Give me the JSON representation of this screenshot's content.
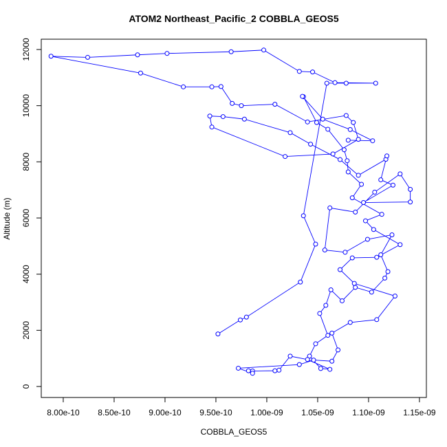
{
  "chart_data": {
    "type": "line",
    "title": "ATOM2 Northeast_Pacific_2 COBBLA_GEOS5",
    "x_label": "COBBLA_GEOS5",
    "y_label": "Altitude (m)",
    "xlim": [
      7.784e-10,
      1.1568e-09
    ],
    "ylim": [
      -392,
      12367
    ],
    "xticks": [
      {
        "value": 8e-10,
        "label": "8.00e-10"
      },
      {
        "value": 8.5e-10,
        "label": "8.50e-10"
      },
      {
        "value": 9e-10,
        "label": "9.00e-10"
      },
      {
        "value": 9.5e-10,
        "label": "9.50e-10"
      },
      {
        "value": 1e-09,
        "label": "1.00e-09"
      },
      {
        "value": 1.05e-09,
        "label": "1.05e-09"
      },
      {
        "value": 1.1e-09,
        "label": "1.10e-09"
      },
      {
        "value": 1.15e-09,
        "label": "1.15e-09"
      }
    ],
    "yticks": [
      0,
      2000,
      4000,
      6000,
      8000,
      10000,
      12000
    ],
    "x": [
      9.52e-10,
      9.74e-10,
      9.8e-10,
      1.033e-09,
      1.048e-09,
      1.036e-09,
      1.059e-09,
      1.078e-09,
      1.107e-09,
      1.067e-09,
      1.045e-09,
      1.032e-09,
      9.97e-10,
      9.65e-10,
      9.02e-10,
      8.73e-10,
      8.24e-10,
      7.88e-10,
      8.76e-10,
      9.18e-10,
      9.46e-10,
      9.55e-10,
      9.66e-10,
      9.75e-10,
      1.008e-09,
      1.04e-09,
      1.078e-09,
      1.085e-09,
      1.09e-09,
      1.065e-09,
      1.018e-09,
      9.46e-10,
      9.44e-10,
      9.57e-10,
      9.78e-10,
      1.023e-09,
      1.043e-09,
      1.072e-09,
      1.09e-09,
      1.117e-09,
      1.118e-09,
      1.112e-09,
      1.124e-09,
      1.095e-09,
      1.141e-09,
      1.141e-09,
      1.131e-09,
      1.106e-09,
      1.087e-09,
      1.062e-09,
      1.057e-09,
      1.077e-09,
      1.099e-09,
      1.123e-09,
      1.112e-09,
      1.119e-09,
      1.116e-09,
      1.103e-09,
      1.087e-09,
      1.074e-09,
      1.063e-09,
      1.058e-09,
      1.052e-09,
      1.06e-09,
      1.048e-09,
      1.042e-09,
      1.053e-09,
      1.062e-09,
      1.04e-09,
      1.023e-09,
      1.012e-09,
      1.008e-09,
      9.86e-10,
      9.82e-10,
      9.86e-10,
      9.72e-10,
      1.032e-09,
      1.046e-09,
      1.064e-09,
      1.07e-09,
      1.064e-09,
      1.082e-09,
      1.108e-09,
      1.126e-09,
      1.086e-09,
      1.072e-09,
      1.084e-09,
      1.108e-09,
      1.131e-09,
      1.105e-09,
      1.097e-09,
      1.113e-09,
      1.084e-09,
      1.093e-09,
      1.08e-09,
      1.079e-09,
      1.076e-09,
      1.06e-09,
      1.049e-09,
      1.036e-09,
      1.035e-09,
      1.055e-09,
      1.082e-09,
      1.104e-09,
      1.08e-09
    ],
    "series": [
      {
        "color": "#0000ff",
        "values": [
          1870,
          2370,
          2470,
          3720,
          5070,
          6080,
          10800,
          10800,
          10800,
          10820,
          11200,
          11220,
          11980,
          11920,
          11860,
          11810,
          11720,
          11760,
          11160,
          10670,
          10670,
          10680,
          10080,
          10000,
          10050,
          9420,
          9650,
          9400,
          8800,
          8280,
          8190,
          9240,
          9630,
          9610,
          9520,
          9040,
          8630,
          8080,
          7520,
          8090,
          8210,
          7360,
          7170,
          6550,
          6570,
          7020,
          7570,
          6920,
          6210,
          6360,
          4860,
          4780,
          5240,
          5400,
          4690,
          4090,
          3860,
          3360,
          3530,
          3050,
          3440,
          2890,
          2600,
          1820,
          1520,
          1080,
          640,
          610,
          960,
          1080,
          580,
          560,
          550,
          560,
          470,
          650,
          780,
          940,
          900,
          1300,
          1900,
          2280,
          2380,
          3220,
          3670,
          4160,
          4580,
          4600,
          5050,
          5590,
          5900,
          6130,
          6720,
          7200,
          7640,
          8040,
          8430,
          9160,
          9400,
          10320,
          10330,
          9520,
          9150,
          8750,
          8770
        ]
      }
    ]
  }
}
